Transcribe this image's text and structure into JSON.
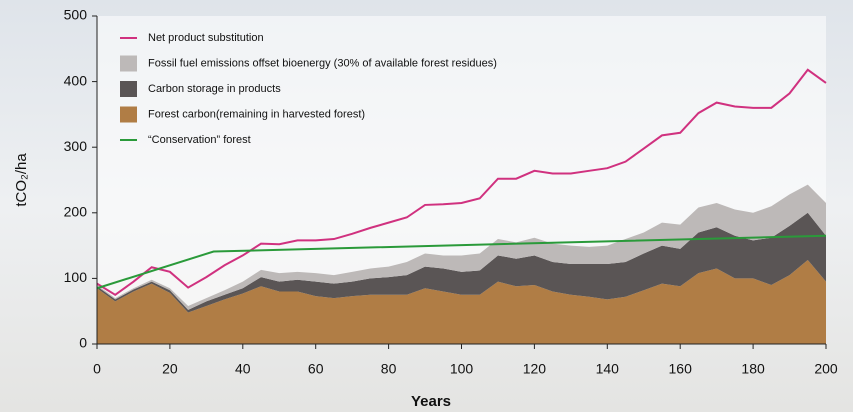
{
  "chart_data": {
    "type": "area",
    "stacked": true,
    "x_label": "Years",
    "y_label": "tCO₂/ha",
    "x": [
      0,
      5,
      10,
      15,
      20,
      25,
      30,
      35,
      40,
      45,
      50,
      55,
      60,
      65,
      70,
      75,
      80,
      85,
      90,
      95,
      100,
      105,
      110,
      115,
      120,
      125,
      130,
      135,
      140,
      145,
      150,
      155,
      160,
      165,
      170,
      175,
      180,
      185,
      190,
      195,
      200
    ],
    "series": [
      {
        "name": "Net product substitution",
        "type": "line",
        "color": "#d0317f",
        "values": [
          92,
          75,
          95,
          117,
          110,
          86,
          102,
          120,
          135,
          153,
          152,
          158,
          158,
          160,
          168,
          177,
          185,
          193,
          212,
          213,
          215,
          222,
          252,
          252,
          264,
          260,
          260,
          264,
          268,
          278,
          298,
          318,
          322,
          352,
          368,
          362,
          360,
          360,
          382,
          418,
          398
        ]
      },
      {
        "name": "Fossil fuel emissions offset bioenergy (30% of available forest residues)",
        "type": "area",
        "color": "#bdb9b8",
        "values": [
          2,
          2,
          2,
          3,
          3,
          6,
          5,
          7,
          10,
          11,
          13,
          12,
          13,
          13,
          15,
          15,
          16,
          20,
          20,
          20,
          25,
          26,
          25,
          25,
          27,
          28,
          28,
          26,
          28,
          35,
          32,
          35,
          37,
          38,
          37,
          40,
          42,
          48,
          48,
          43,
          50
        ]
      },
      {
        "name": "Carbon storage in products",
        "type": "area",
        "color": "#5a5555",
        "values": [
          3,
          3,
          3,
          3,
          4,
          4,
          7,
          7,
          8,
          14,
          15,
          18,
          22,
          22,
          22,
          25,
          27,
          30,
          33,
          35,
          35,
          37,
          40,
          42,
          45,
          45,
          47,
          50,
          54,
          53,
          56,
          58,
          57,
          62,
          63,
          65,
          58,
          72,
          75,
          72,
          70
        ]
      },
      {
        "name": "Forest carbon(remaining in harvested forest)",
        "type": "area",
        "color": "#b07d45",
        "values": [
          85,
          65,
          80,
          92,
          78,
          48,
          58,
          68,
          77,
          88,
          80,
          80,
          73,
          70,
          73,
          75,
          75,
          75,
          85,
          80,
          75,
          75,
          95,
          88,
          90,
          80,
          75,
          72,
          68,
          72,
          82,
          92,
          88,
          108,
          115,
          100,
          100,
          90,
          105,
          128,
          95
        ]
      },
      {
        "name": "“Conservation” forest",
        "type": "line",
        "color": "#2a9a3a",
        "x": [
          0,
          32,
          200
        ],
        "values": [
          85,
          141,
          165
        ]
      }
    ],
    "xlim": [
      0,
      200
    ],
    "ylim": [
      0,
      500
    ],
    "xticks": [
      0,
      20,
      40,
      60,
      80,
      100,
      120,
      140,
      160,
      180,
      200
    ],
    "yticks": [
      0,
      100,
      200,
      300,
      400,
      500
    ],
    "legend": "upper-left",
    "grid": false
  }
}
